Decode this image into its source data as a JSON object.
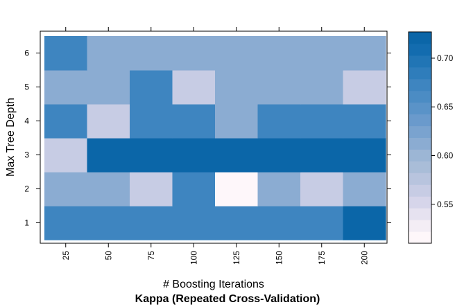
{
  "chart_data": {
    "type": "heatmap",
    "title": "Kappa (Repeated Cross-Validation)",
    "xlabel": "# Boosting Iterations",
    "ylabel": "Max Tree Depth",
    "x": [
      25,
      50,
      75,
      100,
      125,
      150,
      175,
      200
    ],
    "y": [
      1,
      2,
      3,
      4,
      5,
      6
    ],
    "x_tick_labels": [
      "25",
      "50",
      "75",
      "100",
      "125",
      "150",
      "175",
      "200"
    ],
    "y_tick_labels": [
      "1",
      "2",
      "3",
      "4",
      "5",
      "6"
    ],
    "values": [
      [
        0.67,
        0.67,
        0.67,
        0.67,
        0.67,
        0.67,
        0.67,
        0.725
      ],
      [
        0.61,
        0.61,
        0.56,
        0.67,
        0.515,
        0.61,
        0.56,
        0.61
      ],
      [
        0.56,
        0.725,
        0.725,
        0.725,
        0.725,
        0.725,
        0.725,
        0.725
      ],
      [
        0.67,
        0.56,
        0.67,
        0.67,
        0.61,
        0.67,
        0.67,
        0.67
      ],
      [
        0.61,
        0.61,
        0.67,
        0.56,
        0.61,
        0.61,
        0.61,
        0.56
      ],
      [
        0.67,
        0.61,
        0.61,
        0.61,
        0.61,
        0.61,
        0.61,
        0.61
      ]
    ],
    "color_range": [
      0.51,
      0.727
    ],
    "colorbar_ticks": [
      0.55,
      0.6,
      0.65,
      0.7
    ],
    "colorbar_tick_labels": [
      "0.55",
      "0.60",
      "0.65",
      "0.70"
    ],
    "colorbar_colors": [
      "#FEF7FA",
      "#F3EDF5",
      "#E6E2F0",
      "#D6D5EA",
      "#C7CCE4",
      "#B8C4DE",
      "#A9BDD8",
      "#9CB6D5",
      "#8BACD2",
      "#7AA3CF",
      "#6A9ACC",
      "#5A93C8",
      "#4B8CC4",
      "#3E85C0",
      "#2F7DBB",
      "#2175B5",
      "#136CAF",
      "#0B66A8"
    ],
    "colors": {
      "low": "#FFF8FA",
      "high": "#0868A8"
    }
  }
}
